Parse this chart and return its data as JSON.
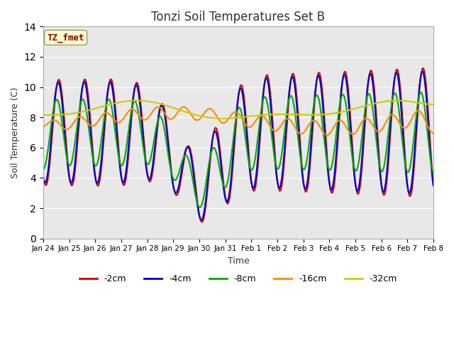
{
  "title": "Tonzi Soil Temperatures Set B",
  "xlabel": "Time",
  "ylabel": "Soil Temperature (C)",
  "ylim": [
    0,
    14
  ],
  "yticks": [
    0,
    2,
    4,
    6,
    8,
    10,
    12,
    14
  ],
  "background_color": "#e8e8e8",
  "figure_color": "#ffffff",
  "annotation_text": "TZ_fmet",
  "annotation_color": "#8b0000",
  "annotation_bg": "#ffffcc",
  "series": {
    "-2cm": {
      "color": "#cc0000",
      "lw": 1.5
    },
    "-4cm": {
      "color": "#0000cc",
      "lw": 1.5
    },
    "-8cm": {
      "color": "#00aa00",
      "lw": 1.5
    },
    "-16cm": {
      "color": "#ff8800",
      "lw": 1.5
    },
    "-32cm": {
      "color": "#cccc00",
      "lw": 1.5
    }
  },
  "x_tick_labels": [
    "Jan 24",
    "Jan 25",
    "Jan 26",
    "Jan 27",
    "Jan 28",
    "Jan 29",
    "Jan 30",
    "Jan 31",
    "Feb 1",
    "Feb 2",
    "Feb 3",
    "Feb 4",
    "Feb 5",
    "Feb 6",
    "Feb 7",
    "Feb 8"
  ],
  "grid_color": "#ffffff",
  "spine_color": "#aaaaaa"
}
